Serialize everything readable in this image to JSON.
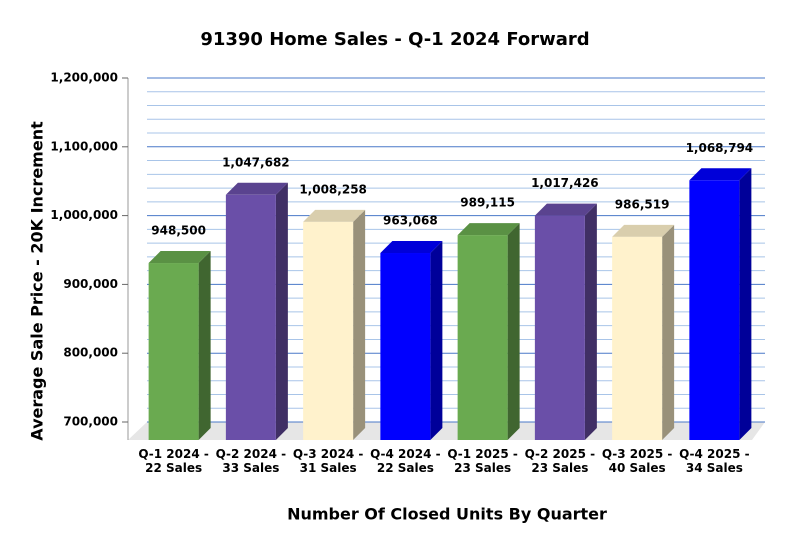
{
  "chart_data": {
    "type": "bar3d",
    "title": "91390 Home Sales - Q-1 2024 Forward",
    "y_label": "Average Sale Price - 20K Increment",
    "x_label": "Number Of Closed Units By Quarter",
    "categories": [
      "Q-1 2024 - 22 Sales",
      "Q-2 2024 - 33 Sales",
      "Q-3 2024 - 31 Sales",
      "Q-4 2024 - 22 Sales",
      "Q-1 2025 - 23 Sales",
      "Q-2 2025 - 23 Sales",
      "Q-3 2025 - 40 Sales",
      "Q-4 2025 - 34 Sales"
    ],
    "values": [
      948500,
      1047682,
      1008258,
      963068,
      989115,
      1017426,
      986519,
      1068794
    ],
    "value_labels": [
      "948,500",
      "1,047,682",
      "1,008,258",
      "963,068",
      "989,115",
      "1,017,426",
      "986,519",
      "1,068,794"
    ],
    "colors": [
      "#6aaa50",
      "#6a4fa8",
      "#fff2cc",
      "#0000ff",
      "#6aaa50",
      "#6a4fa8",
      "#fff2cc",
      "#0000ff"
    ],
    "ylim": [
      700000,
      1200000
    ],
    "yticks": [
      {
        "value": 700000,
        "label": "700,000"
      },
      {
        "value": 800000,
        "label": "800,000"
      },
      {
        "value": 900000,
        "label": "900,000"
      },
      {
        "value": 1000000,
        "label": "1,000,000"
      },
      {
        "value": 1100000,
        "label": "1,100,000"
      },
      {
        "value": 1200000,
        "label": "1,200,000"
      }
    ],
    "minor_yticks": [
      720000,
      740000,
      760000,
      780000,
      820000,
      840000,
      860000,
      880000,
      920000,
      940000,
      960000,
      980000,
      1020000,
      1040000,
      1060000,
      1080000,
      1120000,
      1140000,
      1160000,
      1180000
    ],
    "grid": true
  }
}
